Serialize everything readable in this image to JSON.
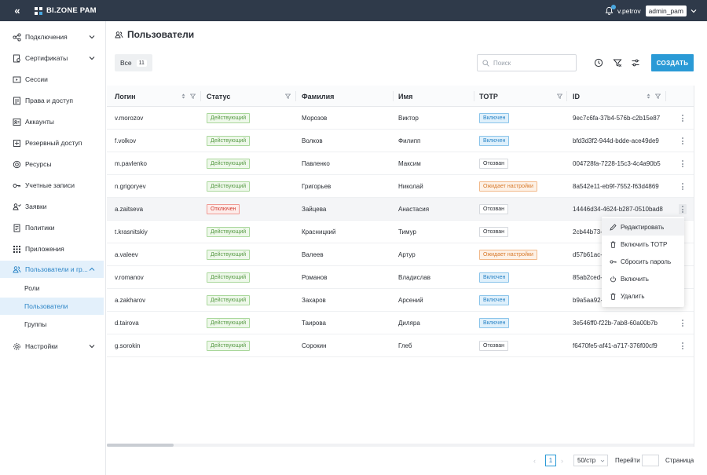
{
  "topbar": {
    "collapse_glyph": "«",
    "brand_name": "BI.ZONE PAM",
    "user": "v.petrov",
    "account": "admin_pam"
  },
  "sidebar": {
    "items": [
      {
        "label": "Подключения",
        "icon": "connections-icon",
        "expandable": true
      },
      {
        "label": "Сертификаты",
        "icon": "certificate-icon",
        "expandable": true
      },
      {
        "label": "Сессии",
        "icon": "sessions-icon",
        "expandable": false
      },
      {
        "label": "Права и доступ",
        "icon": "permissions-icon",
        "expandable": false
      },
      {
        "label": "Аккаунты",
        "icon": "accounts-icon",
        "expandable": false
      },
      {
        "label": "Резервный доступ",
        "icon": "backup-access-icon",
        "expandable": false
      },
      {
        "label": "Ресурсы",
        "icon": "resources-icon",
        "expandable": false
      },
      {
        "label": "Учетные записи",
        "icon": "key-icon",
        "expandable": false
      },
      {
        "label": "Заявки",
        "icon": "requests-icon",
        "expandable": false
      },
      {
        "label": "Политики",
        "icon": "policies-icon",
        "expandable": false
      },
      {
        "label": "Приложения",
        "icon": "apps-grid-icon",
        "expandable": false
      },
      {
        "label": "Пользователи и гр...",
        "icon": "users-icon",
        "expandable": true,
        "expanded": true
      },
      {
        "label": "Настройки",
        "icon": "settings-icon",
        "expandable": true
      }
    ],
    "subitems": [
      {
        "label": "Роли"
      },
      {
        "label": "Пользователи",
        "active": true
      },
      {
        "label": "Группы"
      }
    ]
  },
  "page": {
    "title": "Пользователи",
    "tab_all_label": "Все",
    "tab_all_count": "11",
    "search_placeholder": "Поиск",
    "create_label": "СОЗДАТЬ"
  },
  "table": {
    "columns": [
      {
        "label": "Логин"
      },
      {
        "label": "Статус"
      },
      {
        "label": "Фамилия"
      },
      {
        "label": "Имя"
      },
      {
        "label": "TOTP"
      },
      {
        "label": "ID"
      }
    ],
    "rows": [
      {
        "login": "v.morozov",
        "status": "Действующий",
        "status_type": "green",
        "last": "Морозов",
        "first": "Виктор",
        "totp": "Включен",
        "totp_type": "blue",
        "id": "9ec7c6fa-37b4-576b-c2b15e87"
      },
      {
        "login": "f.volkov",
        "status": "Действующий",
        "status_type": "green",
        "last": "Волков",
        "first": "Филипп",
        "totp": "Включен",
        "totp_type": "blue",
        "id": "bfd3d3f2-944d-bdde-ace49de9"
      },
      {
        "login": "m.pavlenko",
        "status": "Действующий",
        "status_type": "green",
        "last": "Павленко",
        "first": "Максим",
        "totp": "Отозван",
        "totp_type": "gray",
        "id": "004728fa-7228-15c3-4c4a90b5"
      },
      {
        "login": "n.grigoryev",
        "status": "Действующий",
        "status_type": "green",
        "last": "Григорьев",
        "first": "Николай",
        "totp": "Ожидает настройки",
        "totp_type": "orange",
        "id": "8a542e11-eb9f-7552-f63d4869"
      },
      {
        "login": "a.zaitseva",
        "status": "Отключен",
        "status_type": "red",
        "last": "Зайцева",
        "first": "Анастасия",
        "totp": "Отозван",
        "totp_type": "gray",
        "id": "14446d34-4624-b287-0510bad8",
        "highlighted": true
      },
      {
        "login": "t.krasnitskiy",
        "status": "Действующий",
        "status_type": "green",
        "last": "Красницкий",
        "first": "Тимур",
        "totp": "Отозван",
        "totp_type": "gray",
        "id": "2cb44b73-"
      },
      {
        "login": "a.valeev",
        "status": "Действующий",
        "status_type": "green",
        "last": "Валеев",
        "first": "Артур",
        "totp": "Ожидает настройки",
        "totp_type": "orange",
        "id": "d57b61ac-"
      },
      {
        "login": "v.romanov",
        "status": "Действующий",
        "status_type": "green",
        "last": "Романов",
        "first": "Владислав",
        "totp": "Включен",
        "totp_type": "blue",
        "id": "85ab2ced-"
      },
      {
        "login": "a.zakharov",
        "status": "Действующий",
        "status_type": "green",
        "last": "Захаров",
        "first": "Арсений",
        "totp": "Включен",
        "totp_type": "blue",
        "id": "b9a5aa92-"
      },
      {
        "login": "d.tairova",
        "status": "Действующий",
        "status_type": "green",
        "last": "Таирова",
        "first": "Диляра",
        "totp": "Включен",
        "totp_type": "blue",
        "id": "3e546ff0-f22b-7ab8-60a00b7b"
      },
      {
        "login": "g.sorokin",
        "status": "Действующий",
        "status_type": "green",
        "last": "Сорокин",
        "first": "Глеб",
        "totp": "Отозван",
        "totp_type": "gray",
        "id": "f6470fe5-af41-a717-376f00cf9"
      }
    ]
  },
  "context_menu": {
    "items": [
      {
        "label": "Редактировать",
        "icon": "pencil-icon"
      },
      {
        "label": "Включить TOTP",
        "icon": "trash-icon"
      },
      {
        "label": "Сбросить пароль",
        "icon": "key-icon"
      },
      {
        "label": "Включить",
        "icon": "power-icon"
      },
      {
        "label": "Удалить",
        "icon": "trash-icon"
      }
    ]
  },
  "pagination": {
    "prev_glyph": "‹",
    "next_glyph": "›",
    "current_page": "1",
    "page_size": "50/стр",
    "goto_label": "Перейти",
    "page_label": "Страница"
  },
  "colors": {
    "topbar": "#2f3a4a",
    "accent": "#2a9ad6",
    "active_bg": "#e3f0fb"
  }
}
